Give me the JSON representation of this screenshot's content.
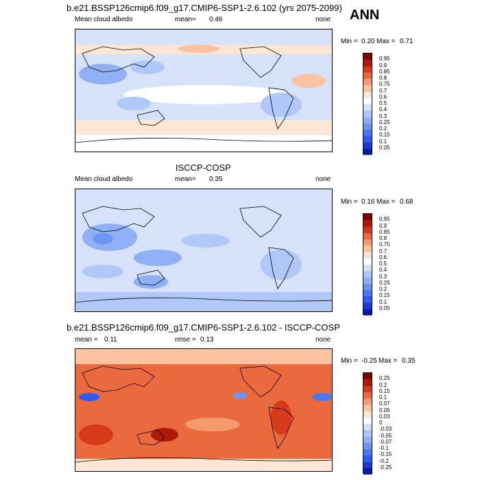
{
  "chart_data": [
    {
      "type": "heatmap",
      "title": "b.e21.BSSP126cmip6.f09_g17.CMIP6-SSP1-2.6.102 (yrs 2075-2099)",
      "subtitle_left": "Mean cloud albedo",
      "mean_text": "mean=",
      "mean": "0.46",
      "units": "none",
      "min_text": "Min =",
      "min": "0.20",
      "max_text": "Max =",
      "max": "0.71",
      "levels": [
        "0.05",
        "0.1",
        "0.15",
        "0.2",
        "0.25",
        "0.3",
        "0.4",
        "0.5",
        "0.6",
        "0.7",
        "0.75",
        "0.8",
        "0.85",
        "0.9",
        "0.95"
      ],
      "colors": [
        "#0a1a9e",
        "#1a3ad8",
        "#2f5cf0",
        "#4a78f0",
        "#6d95f2",
        "#8fb0f4",
        "#b0c8f7",
        "#d5e2fa",
        "#ffffff",
        "#fde6d4",
        "#fbc3a0",
        "#f59a6c",
        "#ea6a3d",
        "#d63a1a",
        "#b01808",
        "#7e0505"
      ]
    },
    {
      "type": "heatmap",
      "title": "ISCCP-COSP",
      "subtitle_left": "Mean cloud albedo",
      "mean_text": "mean=",
      "mean": "0.35",
      "units": "none",
      "min_text": "Min =",
      "min": "0.16",
      "max_text": "Max =",
      "max": "0.68",
      "levels": [
        "0.05",
        "0.1",
        "0.15",
        "0.2",
        "0.25",
        "0.3",
        "0.4",
        "0.5",
        "0.6",
        "0.7",
        "0.75",
        "0.8",
        "0.85",
        "0.9",
        "0.95"
      ],
      "colors": [
        "#0a1a9e",
        "#1a3ad8",
        "#2f5cf0",
        "#4a78f0",
        "#6d95f2",
        "#8fb0f4",
        "#b0c8f7",
        "#d5e2fa",
        "#ffffff",
        "#fde6d4",
        "#fbc3a0",
        "#f59a6c",
        "#ea6a3d",
        "#d63a1a",
        "#b01808",
        "#7e0505"
      ]
    },
    {
      "type": "heatmap",
      "title": "b.e21.BSSP126cmip6.f09_g17.CMIP6-SSP1-2.6.102 - ISCCP-COSP",
      "mean_text": "mean =",
      "mean": "0.11",
      "rmse_text": "rmse =",
      "rmse": "0.13",
      "units": "none",
      "min_text": "Min =",
      "min": "-0.25",
      "max_text": "Max =",
      "max": "0.35",
      "levels": [
        "-0.25",
        "-0.2",
        "-0.15",
        "-0.1",
        "-0.07",
        "-0.05",
        "-0.03",
        "0",
        "0.03",
        "0.05",
        "0.07",
        "0.1",
        "0.15",
        "0.2",
        "0.25"
      ],
      "colors": [
        "#0a1a9e",
        "#1a3ad8",
        "#2f5cf0",
        "#4a78f0",
        "#6d95f2",
        "#8fb0f4",
        "#b0c8f7",
        "#d5e2fa",
        "#ffffff",
        "#fde6d4",
        "#fbc3a0",
        "#f59a6c",
        "#ea6a3d",
        "#d63a1a",
        "#b01808",
        "#7e0505"
      ]
    }
  ],
  "season": "ANN"
}
